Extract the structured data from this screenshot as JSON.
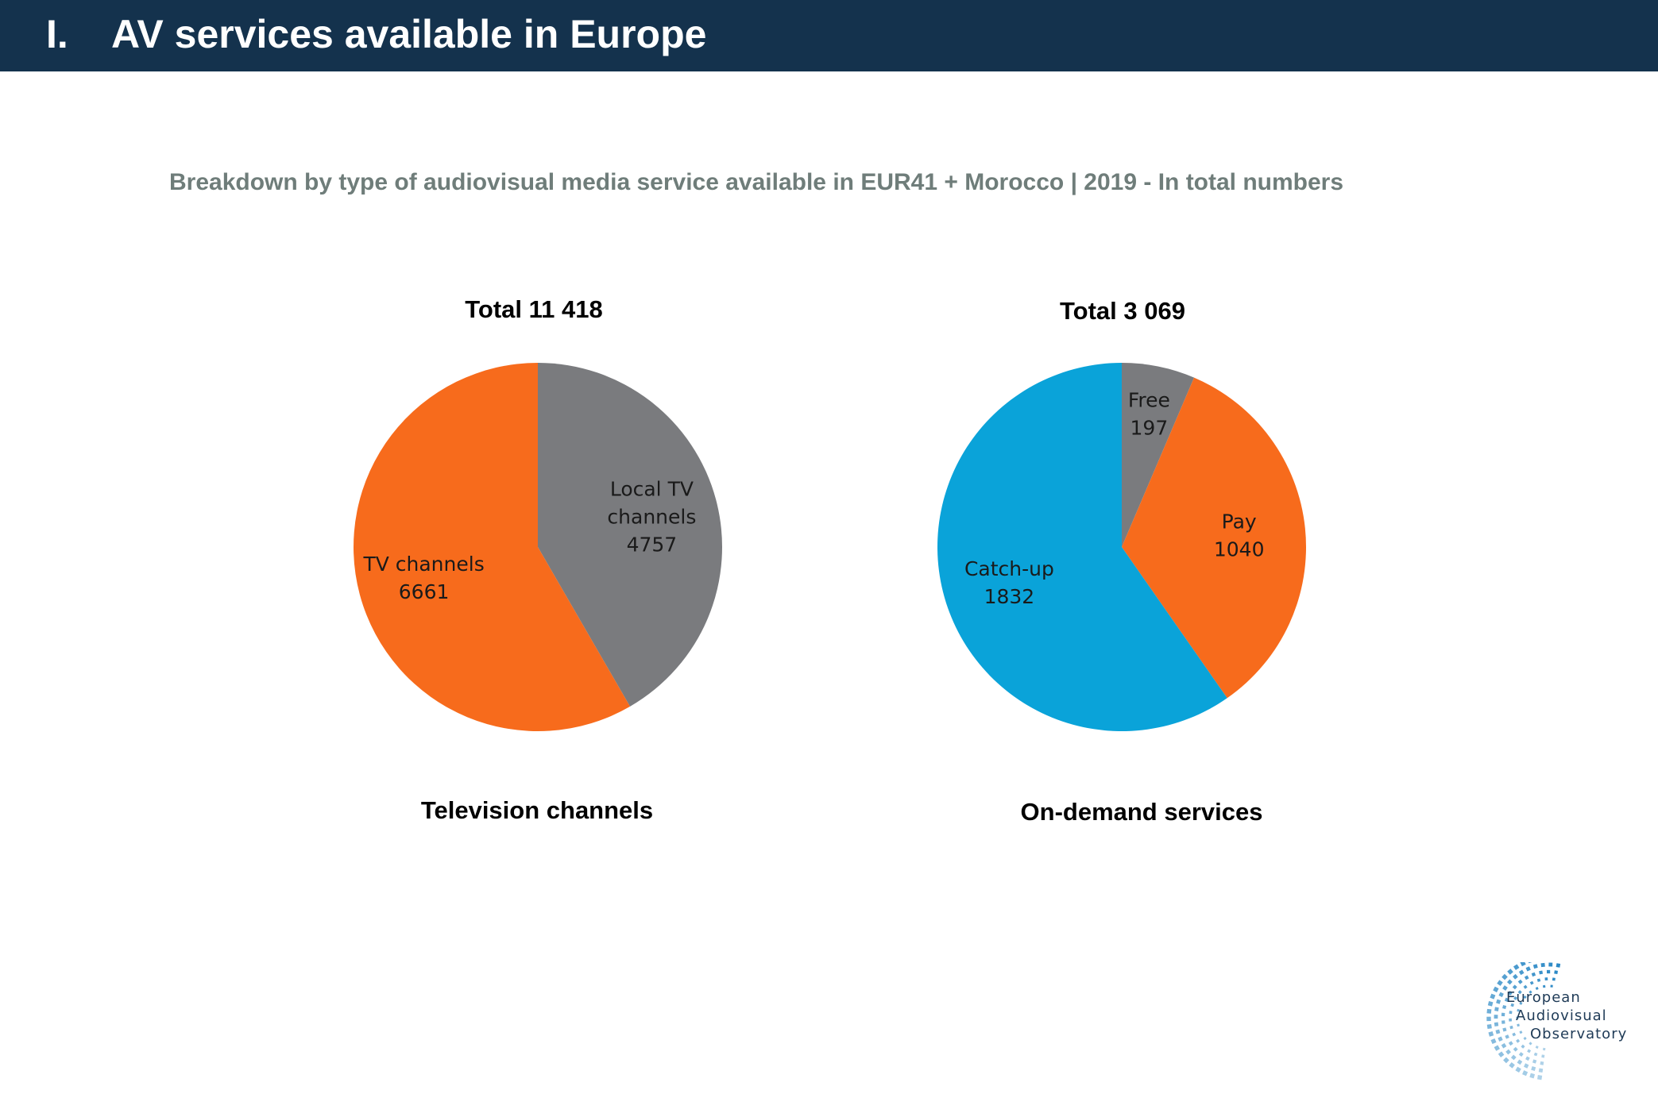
{
  "header": {
    "number": "I.",
    "title": "AV services available in Europe"
  },
  "subtitle": "Breakdown by type of audiovisual media service available in EUR41 + Morocco | 2019 - In total numbers",
  "chart_data": [
    {
      "type": "pie",
      "title": "Total 11 418",
      "caption": "Television channels",
      "slices": [
        {
          "label": "Local TV channels",
          "label_lines": [
            "Local TV",
            "channels"
          ],
          "value": 4757,
          "color": "#7a7b7e"
        },
        {
          "label": "TV channels",
          "label_lines": [
            "TV channels"
          ],
          "value": 6661,
          "color": "#f76b1c"
        }
      ]
    },
    {
      "type": "pie",
      "title": "Total 3 069",
      "caption": "On-demand services",
      "slices": [
        {
          "label": "Free",
          "label_lines": [
            "Free"
          ],
          "value": 197,
          "color": "#7a7b7e"
        },
        {
          "label": "Pay",
          "label_lines": [
            "Pay"
          ],
          "value": 1040,
          "color": "#f76b1c"
        },
        {
          "label": "Catch-up",
          "label_lines": [
            "Catch-up"
          ],
          "value": 1832,
          "color": "#0aa3d9"
        }
      ]
    }
  ],
  "logo": {
    "line1": "European",
    "line2": "Audiovisual",
    "line3": "Observatory",
    "color": "#1a7fc1"
  }
}
